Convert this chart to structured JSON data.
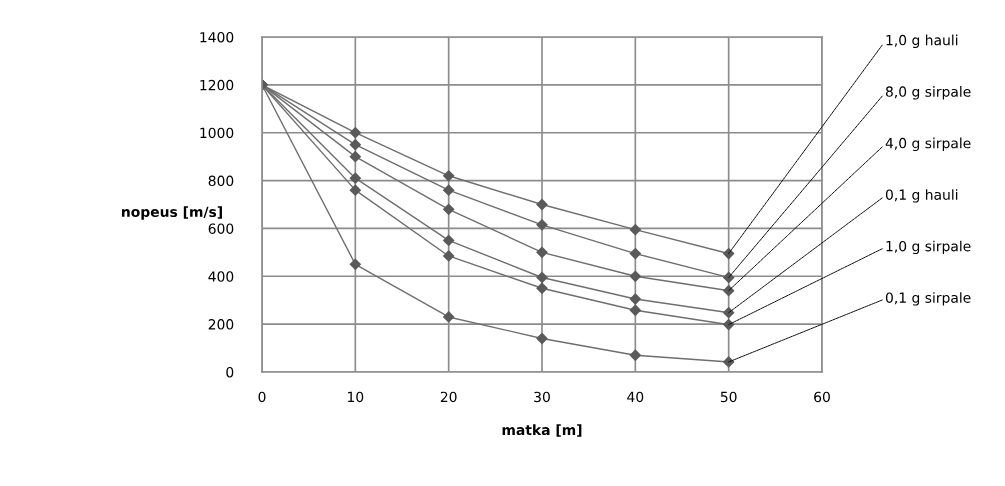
{
  "chart_data": {
    "type": "line",
    "xlabel": "matka [m]",
    "ylabel": "nopeus [m/s]",
    "x": [
      0,
      10,
      20,
      30,
      40,
      50
    ],
    "series": [
      {
        "name": "1,0 g hauli",
        "color": "#6e6e6e",
        "values": [
          1200,
          1000,
          820,
          700,
          595,
          495
        ]
      },
      {
        "name": "8,0 g sirpale",
        "color": "#6e6e6e",
        "values": [
          1200,
          950,
          760,
          615,
          495,
          395
        ]
      },
      {
        "name": "4,0 g sirpale",
        "color": "#6e6e6e",
        "values": [
          1200,
          900,
          680,
          500,
          400,
          340
        ]
      },
      {
        "name": "0,1 g hauli",
        "color": "#6e6e6e",
        "values": [
          1200,
          810,
          550,
          395,
          305,
          248
        ]
      },
      {
        "name": "1,0 g sirpale",
        "color": "#6e6e6e",
        "values": [
          1200,
          760,
          485,
          350,
          258,
          198
        ]
      },
      {
        "name": "0,1 g sirpale",
        "color": "#6e6e6e",
        "values": [
          1200,
          450,
          230,
          140,
          70,
          42
        ]
      }
    ],
    "xlim": [
      0,
      60
    ],
    "xticks": [
      0,
      10,
      20,
      30,
      40,
      50,
      60
    ],
    "ylim": [
      0,
      1400
    ],
    "yticks": [
      0,
      200,
      400,
      600,
      800,
      1000,
      1200,
      1400
    ],
    "grid": true,
    "legend": false,
    "marker": "diamond",
    "line_style": "solid"
  }
}
